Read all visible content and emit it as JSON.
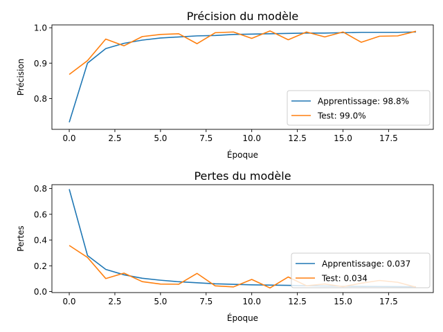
{
  "chart_data": [
    {
      "type": "line",
      "title": "Précision du modèle",
      "xlabel": "Époque",
      "ylabel": "Précision",
      "xlim": [
        -0.95,
        19.95
      ],
      "ylim": [
        0.713,
        1.008
      ],
      "xticks": [
        0.0,
        2.5,
        5.0,
        7.5,
        10.0,
        12.5,
        15.0,
        17.5
      ],
      "xtick_labels": [
        "0.0",
        "2.5",
        "5.0",
        "7.5",
        "10.0",
        "12.5",
        "15.0",
        "17.5"
      ],
      "yticks": [
        0.8,
        0.9,
        1.0
      ],
      "ytick_labels": [
        "0.8",
        "0.9",
        "1.0"
      ],
      "grid": false,
      "legend_position": "lower-right",
      "x": [
        0,
        1,
        2,
        3,
        4,
        5,
        6,
        7,
        8,
        9,
        10,
        11,
        12,
        13,
        14,
        15,
        16,
        17,
        18,
        19
      ],
      "series": [
        {
          "name": "Apprentissage: 98.8%",
          "color": "#1f77b4",
          "values": [
            0.733,
            0.9,
            0.941,
            0.956,
            0.965,
            0.971,
            0.974,
            0.977,
            0.978,
            0.981,
            0.982,
            0.983,
            0.984,
            0.985,
            0.985,
            0.986,
            0.987,
            0.987,
            0.987,
            0.988
          ]
        },
        {
          "name": "Test: 99.0%",
          "color": "#ff7f0e",
          "values": [
            0.868,
            0.907,
            0.968,
            0.949,
            0.975,
            0.981,
            0.983,
            0.955,
            0.986,
            0.988,
            0.97,
            0.991,
            0.966,
            0.988,
            0.974,
            0.988,
            0.959,
            0.976,
            0.977,
            0.99
          ]
        }
      ]
    },
    {
      "type": "line",
      "title": "Pertes du modèle",
      "xlabel": "Époque",
      "ylabel": "Pertes",
      "xlim": [
        -0.95,
        19.95
      ],
      "ylim": [
        -0.008,
        0.83
      ],
      "xticks": [
        0.0,
        2.5,
        5.0,
        7.5,
        10.0,
        12.5,
        15.0,
        17.5
      ],
      "xtick_labels": [
        "0.0",
        "2.5",
        "5.0",
        "7.5",
        "10.0",
        "12.5",
        "15.0",
        "17.5"
      ],
      "yticks": [
        0.0,
        0.2,
        0.4,
        0.6,
        0.8
      ],
      "ytick_labels": [
        "0.0",
        "0.2",
        "0.4",
        "0.6",
        "0.8"
      ],
      "grid": false,
      "legend_position": "lower-right",
      "x": [
        0,
        1,
        2,
        3,
        4,
        5,
        6,
        7,
        8,
        9,
        10,
        11,
        12,
        13,
        14,
        15,
        16,
        17,
        18,
        19
      ],
      "series": [
        {
          "name": "Apprentissage: 0.037",
          "color": "#1f77b4",
          "values": [
            0.795,
            0.28,
            0.172,
            0.13,
            0.103,
            0.088,
            0.076,
            0.068,
            0.06,
            0.056,
            0.052,
            0.05,
            0.048,
            0.045,
            0.043,
            0.041,
            0.04,
            0.039,
            0.038,
            0.037
          ]
        },
        {
          "name": "Test: 0.034",
          "color": "#ff7f0e",
          "values": [
            0.358,
            0.265,
            0.101,
            0.143,
            0.077,
            0.058,
            0.057,
            0.141,
            0.044,
            0.036,
            0.094,
            0.028,
            0.113,
            0.045,
            0.059,
            0.038,
            0.065,
            0.086,
            0.072,
            0.034
          ]
        }
      ]
    }
  ]
}
